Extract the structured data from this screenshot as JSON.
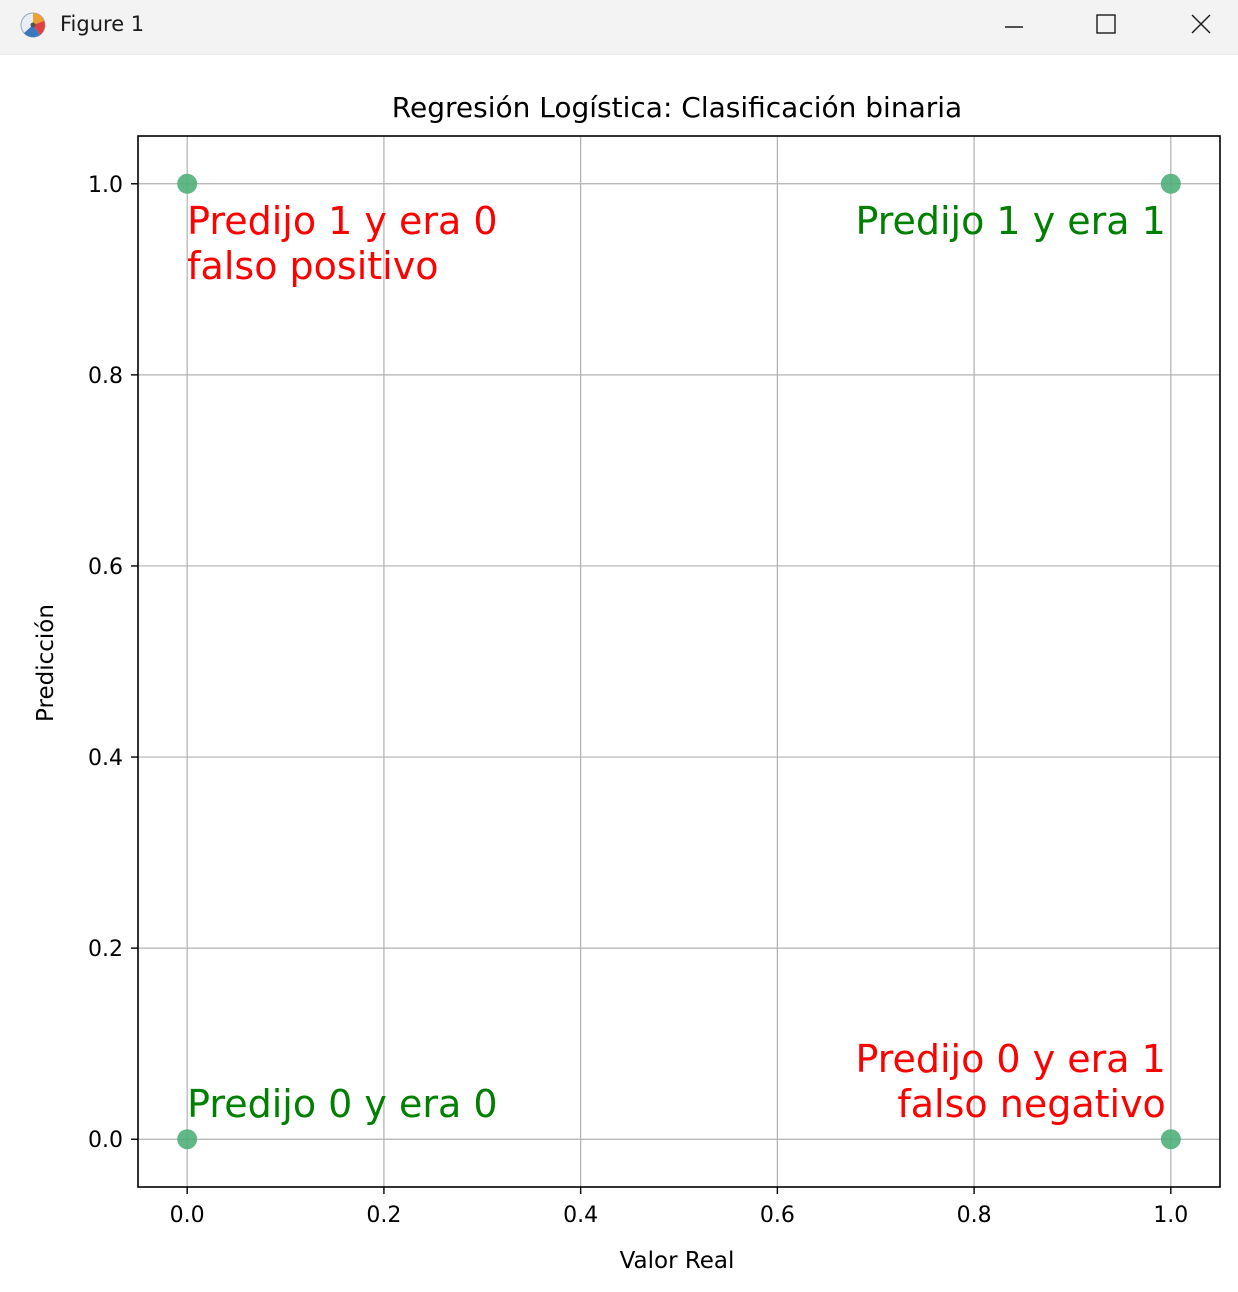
{
  "window": {
    "title": "Figure 1",
    "icon": "matplotlib-figure-icon",
    "controls": [
      "minimize-icon",
      "maximize-icon",
      "close-icon"
    ]
  },
  "chart_data": {
    "type": "scatter",
    "title": "Regresión Logística: Clasificación binaria",
    "xlabel": "Valor Real",
    "ylabel": "Predicción",
    "xlim": [
      -0.05,
      1.05
    ],
    "ylim": [
      -0.05,
      1.05
    ],
    "xticks": [
      0.0,
      0.2,
      0.4,
      0.6,
      0.8,
      1.0
    ],
    "yticks": [
      0.0,
      0.2,
      0.4,
      0.6,
      0.8,
      1.0
    ],
    "xtick_labels": [
      "0.0",
      "0.2",
      "0.4",
      "0.6",
      "0.8",
      "1.0"
    ],
    "ytick_labels": [
      "0.0",
      "0.2",
      "0.4",
      "0.6",
      "0.8",
      "1.0"
    ],
    "grid": true,
    "marker_color": "#4fb07a",
    "points": [
      {
        "x": 0,
        "y": 1
      },
      {
        "x": 1,
        "y": 1
      },
      {
        "x": 0,
        "y": 0
      },
      {
        "x": 1,
        "y": 0
      }
    ],
    "annotations": [
      {
        "text": [
          "Predijo 1 y era 0",
          "falso positivo"
        ],
        "x": 0,
        "y": 1,
        "color": "#ff0000",
        "align": "left",
        "valign": "below"
      },
      {
        "text": [
          "Predijo 1 y era 1"
        ],
        "x": 1,
        "y": 1,
        "color": "#008000",
        "align": "right",
        "valign": "below"
      },
      {
        "text": [
          "Predijo 0 y era 0"
        ],
        "x": 0,
        "y": 0,
        "color": "#008000",
        "align": "left",
        "valign": "above"
      },
      {
        "text": [
          "Predijo 0 y era 1",
          "falso negativo"
        ],
        "x": 1,
        "y": 0,
        "color": "#ff0000",
        "align": "right",
        "valign": "above"
      }
    ]
  }
}
